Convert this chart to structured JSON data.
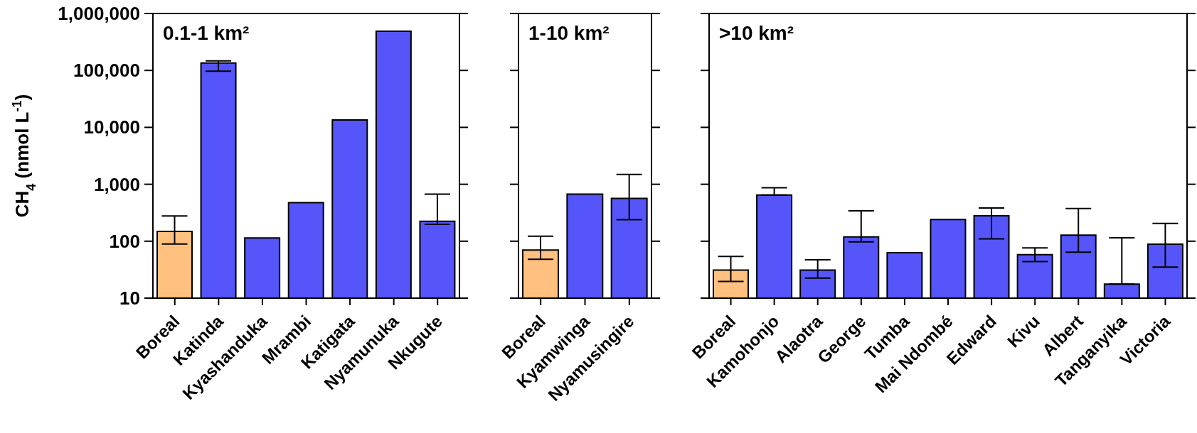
{
  "chart_data": [
    {
      "type": "bar",
      "title": "0.1-1 km²",
      "ylabel": "CH$_{4}$ (nmol L$^{-1}$)",
      "log": true,
      "ylim": [
        10,
        1000000
      ],
      "yticks": [
        10,
        100,
        {
          "value": 1000,
          "label": "1,000"
        },
        {
          "value": 10000,
          "label": "10,000"
        },
        {
          "value": 100000,
          "label": "100,000"
        },
        {
          "value": 1000000,
          "label": "1,000,000"
        }
      ],
      "categories": [
        "Boreal",
        "Katinda",
        "Kyashanduka",
        "Mrambi",
        "Katigata",
        "Nyamunuka",
        "Nkugute"
      ],
      "values": [
        149,
        135000,
        114,
        476,
        13500,
        488000,
        223
      ],
      "colors": [
        "#ffc080",
        "#5555fa",
        "#5555fa",
        "#5555fa",
        "#5555fa",
        "#5555fa",
        "#5555fa"
      ],
      "errors": [
        [
          89,
          277
        ],
        [
          97000,
          147000
        ],
        null,
        null,
        null,
        null,
        [
          198,
          673
        ]
      ]
    },
    {
      "type": "bar",
      "title": "1-10 km²",
      "log": true,
      "ylim": [
        10,
        1000000
      ],
      "tick_labels": "x",
      "yticks": [
        10,
        100,
        1000,
        10000,
        100000,
        1000000
      ],
      "categories": [
        "Boreal",
        "Kyamwinga",
        "Nyamusingire"
      ],
      "values": [
        70,
        670,
        566
      ],
      "colors": [
        "#ffc080",
        "#5555fa",
        "#5555fa"
      ],
      "errors": [
        [
          48,
          122
        ],
        null,
        [
          239,
          1490
        ]
      ]
    },
    {
      "type": "bar",
      "title": ">10 km²",
      "log": true,
      "ylim": [
        10,
        1000000
      ],
      "tick_labels": "x",
      "yticks": [
        10,
        100,
        1000,
        10000,
        100000,
        1000000
      ],
      "categories": [
        "Boreal",
        "Kamohonjo",
        "Alaotra",
        "George",
        "Tumba",
        "Mai Ndombé",
        "Edward",
        "Kivu",
        "Albert",
        "Tanganyika",
        "Victoria"
      ],
      "values": [
        31,
        646,
        31,
        119,
        63,
        240,
        279,
        58,
        128,
        17.6,
        88.5
      ],
      "colors": [
        "#ffc080",
        "#5555fa",
        "#5555fa",
        "#5555fa",
        "#5555fa",
        "#5555fa",
        "#5555fa",
        "#5555fa",
        "#5555fa",
        "#5555fa",
        "#5555fa"
      ],
      "errors": [
        [
          19.6,
          54
        ],
        [
          646,
          870
        ],
        [
          22.5,
          47
        ],
        [
          97,
          342
        ],
        null,
        null,
        [
          110,
          384
        ],
        [
          44,
          76
        ],
        [
          64,
          376
        ],
        [
          17.6,
          115
        ],
        [
          35,
          205
        ]
      ]
    }
  ]
}
